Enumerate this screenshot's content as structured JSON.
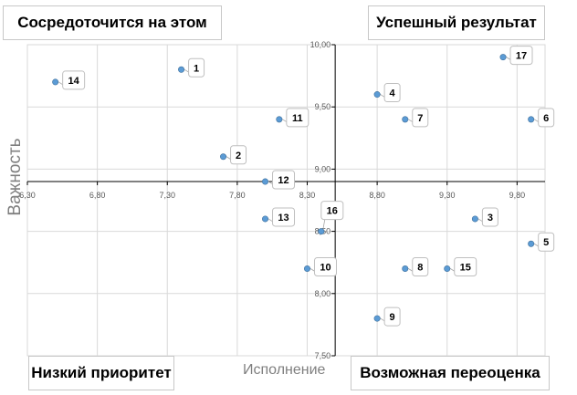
{
  "quadrants": {
    "top_left": "Сосредоточится на этом",
    "top_right": "Успешный результат",
    "bottom_left": "Низкий приоритет",
    "bottom_right": "Возможная переоценка"
  },
  "colors": {
    "point": "#5b9bd5",
    "grid": "#d9d9d9",
    "axis": "#000000"
  },
  "chart_data": {
    "type": "scatter",
    "xlabel": "Исполнение",
    "ylabel": "Важность",
    "xlim": [
      6.3,
      10.0
    ],
    "ylim": [
      7.5,
      10.0
    ],
    "x_cross": 8.5,
    "y_cross": 8.9,
    "x_ticks": [
      "6,30",
      "6,80",
      "7,30",
      "7,80",
      "8,30",
      "8,80",
      "9,30",
      "9,80"
    ],
    "x_tick_values": [
      6.3,
      6.8,
      7.3,
      7.8,
      8.3,
      8.8,
      9.3,
      9.8
    ],
    "y_ticks": [
      "7,50",
      "8,00",
      "8,50",
      "9,00",
      "9,50",
      "10,00"
    ],
    "y_tick_values": [
      7.5,
      8.0,
      8.5,
      9.0,
      9.5,
      10.0
    ],
    "grid": true,
    "points": [
      {
        "label": "1",
        "x": 7.4,
        "y": 9.8
      },
      {
        "label": "2",
        "x": 7.7,
        "y": 9.1
      },
      {
        "label": "3",
        "x": 9.5,
        "y": 8.6
      },
      {
        "label": "4",
        "x": 8.8,
        "y": 9.6
      },
      {
        "label": "5",
        "x": 9.9,
        "y": 8.4
      },
      {
        "label": "6",
        "x": 9.9,
        "y": 9.4
      },
      {
        "label": "7",
        "x": 9.0,
        "y": 9.4
      },
      {
        "label": "8",
        "x": 9.0,
        "y": 8.2
      },
      {
        "label": "9",
        "x": 8.8,
        "y": 7.8
      },
      {
        "label": "10",
        "x": 8.3,
        "y": 8.2
      },
      {
        "label": "11",
        "x": 8.1,
        "y": 9.4
      },
      {
        "label": "12",
        "x": 8.0,
        "y": 8.9
      },
      {
        "label": "13",
        "x": 8.0,
        "y": 8.6
      },
      {
        "label": "14",
        "x": 6.5,
        "y": 9.7
      },
      {
        "label": "15",
        "x": 9.3,
        "y": 8.2
      },
      {
        "label": "16",
        "x": 8.4,
        "y": 8.5
      },
      {
        "label": "17",
        "x": 9.7,
        "y": 9.9
      }
    ]
  }
}
